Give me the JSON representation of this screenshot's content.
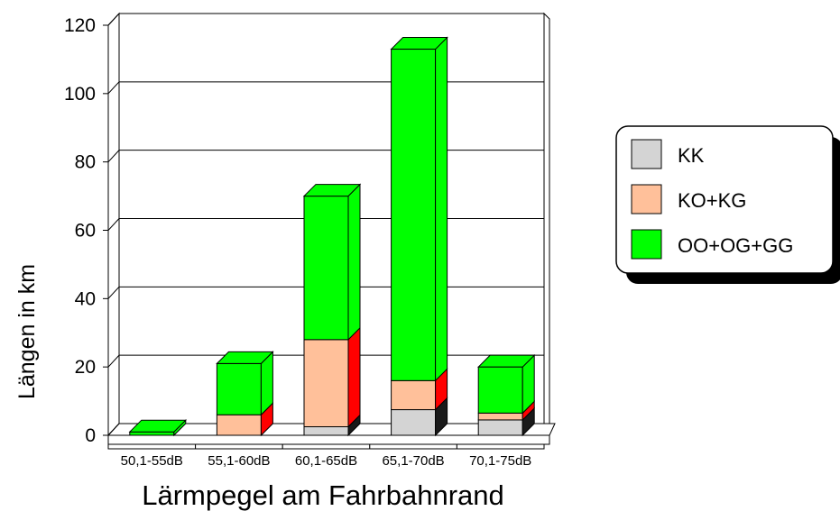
{
  "chart_data": {
    "type": "bar",
    "stacked": true,
    "style": "3d",
    "categories": [
      "50,1-55dB",
      "55,1-60dB",
      "60,1-65dB",
      "65,1-70dB",
      "70,1-75dB"
    ],
    "series": [
      {
        "name": "KK",
        "color": "#d4d4d4",
        "values": [
          0,
          0,
          2.5,
          7.5,
          4.5
        ]
      },
      {
        "name": "KO+KG",
        "color": "#ffc09a",
        "values": [
          0,
          6,
          25.5,
          8.5,
          2
        ]
      },
      {
        "name": "OO+OG+GG",
        "color": "#00ff00",
        "values": [
          1,
          15,
          42,
          97,
          13.5
        ]
      }
    ],
    "y_ticks": [
      "0",
      "20",
      "40",
      "60",
      "80",
      "100",
      "120"
    ],
    "ylim": [
      0,
      120
    ],
    "xlabel": "Lärmpegel am Fahrbahnrand",
    "ylabel": "Längen in km",
    "title": "",
    "grid": true,
    "legend_position": "right"
  }
}
